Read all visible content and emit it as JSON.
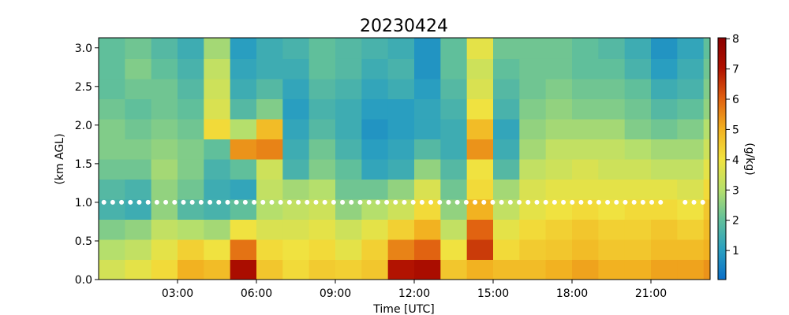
{
  "chart_data": {
    "type": "heatmap",
    "title": "20230424",
    "xlabel": "Time [UTC]",
    "ylabel": "(km AGL)",
    "colorbar_label": "(g/kg)",
    "x_bins": [
      0,
      1,
      2,
      3,
      4,
      5,
      6,
      7,
      8,
      9,
      10,
      11,
      12,
      13,
      14,
      15,
      16,
      17,
      18,
      19,
      20,
      21,
      22,
      23,
      23.25
    ],
    "y_bins": [
      0,
      0.26,
      0.52,
      0.78,
      1.04,
      1.3,
      1.56,
      1.82,
      2.08,
      2.34,
      2.6,
      2.86,
      3.13
    ],
    "xlim": [
      0,
      23.25
    ],
    "ylim": [
      0,
      3.13
    ],
    "xticks": [
      {
        "value": 3,
        "label": "03:00"
      },
      {
        "value": 6,
        "label": "06:00"
      },
      {
        "value": 9,
        "label": "09:00"
      },
      {
        "value": 12,
        "label": "12:00"
      },
      {
        "value": 15,
        "label": "15:00"
      },
      {
        "value": 18,
        "label": "18:00"
      },
      {
        "value": 21,
        "label": "21:00"
      }
    ],
    "yticks": [
      {
        "value": 0,
        "label": "0.0"
      },
      0.5,
      {
        "value": 1,
        "label": "1.0"
      },
      1.5,
      {
        "value": 2,
        "label": "2.0"
      },
      2.5,
      {
        "value": 3,
        "label": "3.0"
      }
    ],
    "clim": [
      0.04,
      8.03
    ],
    "cticks": [
      1,
      2,
      3,
      4,
      5,
      6,
      7,
      8
    ],
    "colormap": [
      "#0a6fc8",
      "#2aa0c0",
      "#62c09a",
      "#b8e06a",
      "#f2e23e",
      "#f2b020",
      "#e06010",
      "#b01000",
      "#8a0000"
    ],
    "values": [
      [
        3.5,
        3.8,
        4.2,
        5.0,
        4.8,
        7.2,
        4.6,
        4.2,
        4.5,
        4.4,
        4.6,
        7.0,
        7.2,
        4.6,
        5.0,
        4.8,
        4.8,
        5.0,
        5.2,
        5.0,
        5.0,
        5.2,
        5.2,
        5.4
      ],
      [
        3.0,
        3.2,
        3.8,
        4.4,
        4.0,
        5.8,
        4.2,
        4.0,
        4.2,
        3.8,
        4.4,
        5.6,
        6.0,
        4.0,
        6.5,
        4.2,
        4.5,
        4.6,
        4.8,
        4.6,
        4.6,
        4.8,
        4.8,
        5.0
      ],
      [
        2.4,
        2.6,
        3.2,
        3.0,
        2.8,
        4.0,
        3.6,
        3.6,
        3.8,
        3.4,
        3.8,
        4.4,
        5.0,
        3.2,
        6.0,
        3.8,
        4.2,
        4.4,
        4.6,
        4.4,
        4.4,
        4.6,
        4.4,
        4.8
      ],
      [
        1.6,
        1.4,
        2.6,
        1.8,
        1.6,
        2.0,
        3.0,
        3.2,
        3.4,
        2.6,
        3.0,
        3.4,
        4.2,
        2.6,
        5.0,
        3.2,
        3.8,
        4.0,
        4.2,
        4.0,
        4.2,
        4.2,
        4.0,
        4.6
      ],
      [
        1.8,
        1.6,
        2.6,
        2.2,
        1.4,
        1.2,
        3.2,
        2.8,
        3.0,
        2.2,
        2.2,
        2.6,
        3.6,
        2.2,
        4.2,
        2.8,
        3.6,
        3.8,
        3.8,
        3.8,
        3.8,
        3.8,
        3.6,
        4.2
      ],
      [
        2.2,
        2.2,
        2.8,
        2.4,
        1.6,
        2.0,
        3.4,
        1.6,
        2.4,
        2.0,
        1.2,
        1.4,
        2.6,
        1.8,
        4.0,
        1.8,
        3.2,
        3.4,
        3.6,
        3.4,
        3.4,
        3.2,
        3.2,
        3.8
      ],
      [
        2.4,
        2.4,
        2.6,
        2.4,
        2.0,
        5.4,
        5.6,
        1.4,
        2.2,
        1.6,
        1.0,
        1.2,
        1.8,
        1.4,
        5.4,
        1.4,
        2.8,
        3.2,
        3.2,
        3.2,
        3.0,
        2.8,
        2.8,
        3.4
      ],
      [
        2.4,
        2.2,
        2.4,
        2.2,
        4.2,
        3.0,
        4.8,
        1.2,
        1.8,
        1.4,
        0.8,
        1.0,
        1.2,
        1.4,
        4.8,
        1.2,
        2.6,
        2.8,
        2.8,
        2.8,
        2.4,
        2.2,
        2.4,
        3.0
      ],
      [
        2.2,
        2.0,
        2.2,
        2.0,
        3.6,
        1.8,
        2.4,
        1.0,
        1.6,
        1.4,
        1.0,
        1.0,
        1.2,
        1.6,
        4.0,
        1.6,
        2.4,
        2.6,
        2.4,
        2.4,
        2.2,
        1.8,
        2.0,
        2.6
      ],
      [
        2.0,
        2.2,
        2.2,
        1.8,
        3.4,
        1.4,
        1.8,
        1.2,
        1.8,
        1.6,
        1.2,
        1.4,
        1.0,
        1.8,
        3.6,
        1.8,
        2.2,
        2.4,
        2.2,
        2.2,
        2.0,
        1.4,
        1.6,
        2.4
      ],
      [
        2.0,
        2.4,
        2.0,
        1.6,
        3.2,
        1.2,
        1.4,
        1.4,
        2.0,
        1.8,
        1.4,
        1.6,
        0.8,
        2.0,
        3.4,
        2.0,
        2.2,
        2.2,
        2.0,
        2.0,
        1.6,
        1.0,
        1.4,
        2.2
      ],
      [
        2.0,
        2.2,
        1.8,
        1.4,
        2.8,
        1.0,
        1.4,
        1.6,
        2.0,
        1.8,
        1.6,
        1.4,
        0.8,
        2.0,
        3.8,
        2.2,
        2.2,
        2.2,
        2.0,
        1.8,
        1.4,
        0.8,
        1.2,
        2.0
      ]
    ],
    "reference_line": {
      "y": 1,
      "color": "#ffffff",
      "x_ranges": [
        [
          0.2,
          21.6
        ],
        [
          22.3,
          23.25
        ]
      ]
    }
  }
}
